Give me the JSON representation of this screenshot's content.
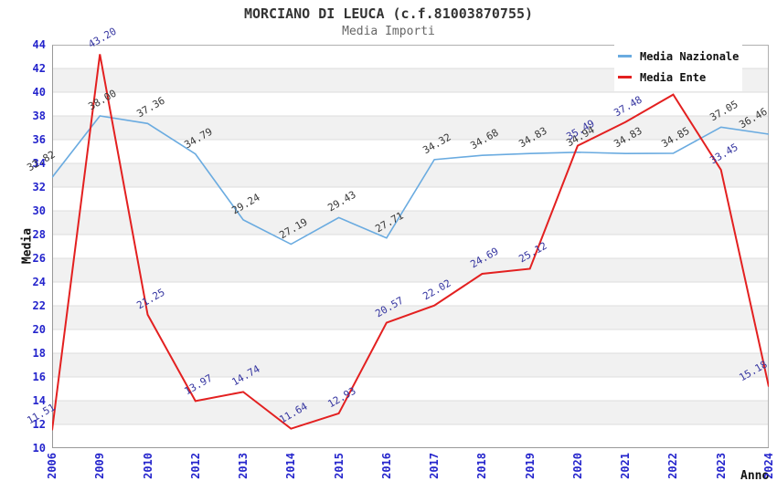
{
  "chart_data": {
    "type": "line",
    "title": "MORCIANO DI LEUCA (c.f.81003870755)",
    "subtitle": "Media Importi",
    "xlabel": "Anno",
    "ylabel": "Media",
    "categories": [
      "2006",
      "2009",
      "2010",
      "2012",
      "2013",
      "2014",
      "2015",
      "2016",
      "2017",
      "2018",
      "2019",
      "2020",
      "2021",
      "2022",
      "2023",
      "2024"
    ],
    "series": [
      {
        "name": "Media Nazionale",
        "color": "#6aabe0",
        "label_color": "#383838",
        "line_width": 1.6,
        "values": [
          32.82,
          38.0,
          37.36,
          34.79,
          29.24,
          27.19,
          29.43,
          27.71,
          34.32,
          34.68,
          34.83,
          34.94,
          34.83,
          34.85,
          37.05,
          36.46
        ],
        "labels": [
          "32.82",
          "38.00",
          "37.36",
          "34.79",
          "29.24",
          "27.19",
          "29.43",
          "27.71",
          "34.32",
          "34.68",
          "34.83",
          "34.94",
          "34.83",
          "34.85",
          "37.05",
          "36.46"
        ]
      },
      {
        "name": "Media Ente",
        "color": "#e32020",
        "label_color": "#3535a0",
        "line_width": 2,
        "values": [
          11.51,
          43.2,
          21.25,
          13.97,
          14.74,
          11.64,
          12.93,
          20.57,
          22.02,
          24.69,
          25.12,
          35.49,
          37.48,
          39.8,
          33.45,
          15.18
        ],
        "labels": [
          "11.51",
          "43.20",
          "21.25",
          "13.97",
          "14.74",
          "11.64",
          "12.93",
          "20.57",
          "22.02",
          "24.69",
          "25.12",
          "35.49",
          "37.48",
          "39.80",
          "33.45",
          "15.18"
        ]
      }
    ],
    "ylim": [
      10,
      44
    ],
    "ytick_step": 2,
    "grid": true,
    "band_colors": [
      "#ffffff",
      "#f1f1f1"
    ],
    "gridline_color": "#dddddd",
    "border_color": "#b0b0b0",
    "axis_color": "#999999",
    "tick_label_color": "#2424cc",
    "legend_position": "top-right"
  }
}
